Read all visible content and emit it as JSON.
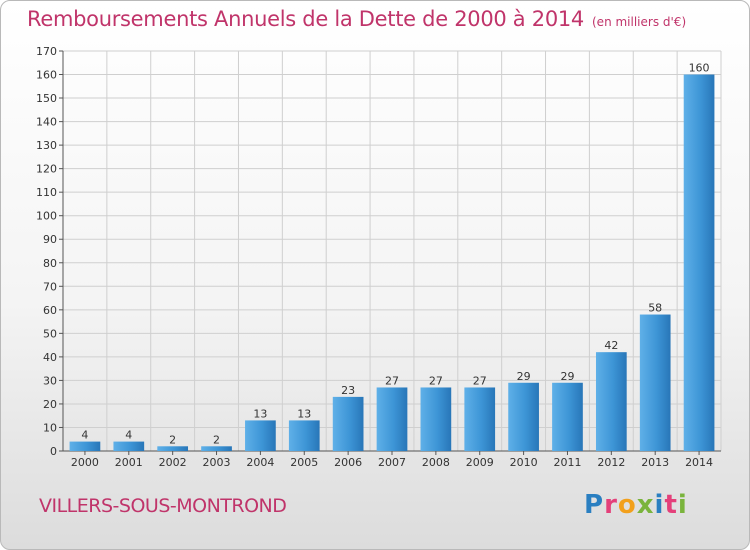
{
  "header": {
    "title": "Remboursements Annuels de la Dette de 2000 à 2014",
    "unit": "(en milliers d'€)"
  },
  "commune": "VILLERS-SOUS-MONTROND",
  "logo": {
    "letters": [
      "P",
      "r",
      "o",
      "x",
      "i",
      "t",
      "i"
    ],
    "colors": [
      "#2a7fc1",
      "#e4407a",
      "#f2a01c",
      "#7ab43c",
      "#2a7fc1",
      "#e4407a",
      "#7ab43c"
    ]
  },
  "chart_data": {
    "type": "bar",
    "title": "Remboursements Annuels de la Dette de 2000 à 2014",
    "categories": [
      "2000",
      "2001",
      "2002",
      "2003",
      "2004",
      "2005",
      "2006",
      "2007",
      "2008",
      "2009",
      "2010",
      "2011",
      "2012",
      "2013",
      "2014"
    ],
    "values": [
      4,
      4,
      2,
      2,
      13,
      13,
      23,
      27,
      27,
      27,
      29,
      29,
      42,
      58,
      160
    ],
    "ylim": [
      0,
      170
    ],
    "yticks": [
      0,
      10,
      20,
      30,
      40,
      50,
      60,
      70,
      80,
      90,
      100,
      110,
      120,
      130,
      140,
      150,
      160,
      170
    ],
    "grid": true,
    "bar_color": "#3d95d6",
    "bar_color_dark": "#2876b8",
    "grid_color": "#cfcfcf"
  }
}
